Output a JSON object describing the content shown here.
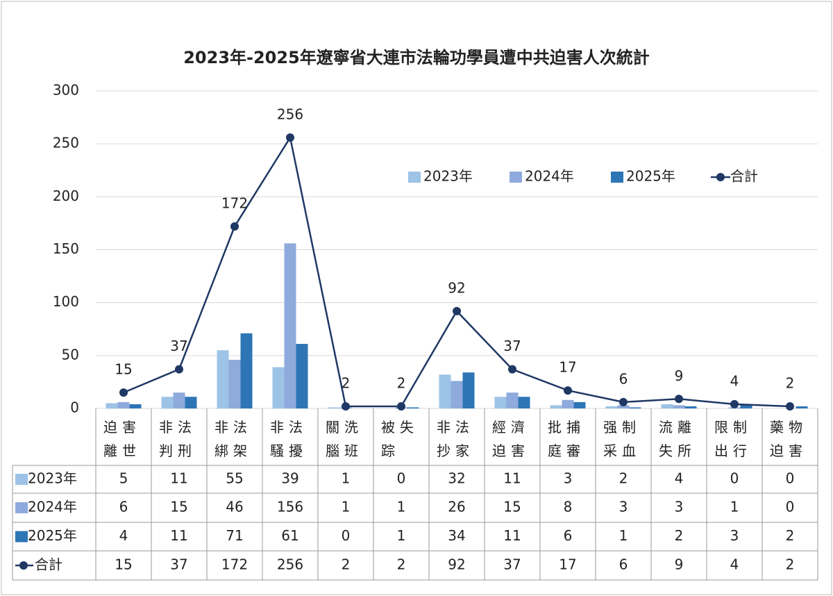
{
  "chart_data": {
    "type": "bar-line-table",
    "title": "2023年-2025年遼寧省大連市法輪功學員遭中共迫害人次統計",
    "categories": [
      "迫害離世",
      "非法判刑",
      "非法綁架",
      "非法騷擾",
      "關洗腦班",
      "被失踪",
      "非法抄家",
      "經濟迫害",
      "批捕庭審",
      "强制采血",
      "流離失所",
      "限制出行",
      "藥物迫害"
    ],
    "series": [
      {
        "name": "2023年",
        "type": "bar",
        "color": "#9dc3e6",
        "values": [
          5,
          11,
          55,
          39,
          1,
          0,
          32,
          11,
          3,
          2,
          4,
          0,
          0
        ]
      },
      {
        "name": "2024年",
        "type": "bar",
        "color": "#8faadc",
        "values": [
          6,
          15,
          46,
          156,
          1,
          1,
          26,
          15,
          8,
          3,
          3,
          1,
          0
        ]
      },
      {
        "name": "2025年",
        "type": "bar",
        "color": "#2e75b6",
        "values": [
          4,
          11,
          71,
          61,
          0,
          1,
          34,
          11,
          6,
          1,
          2,
          3,
          2
        ]
      },
      {
        "name": "合計",
        "type": "line",
        "color": "#1f3864",
        "values": [
          15,
          37,
          172,
          256,
          2,
          2,
          92,
          37,
          17,
          6,
          9,
          4,
          2
        ]
      }
    ],
    "ylim": [
      0,
      300
    ],
    "yticks": [
      0,
      50,
      100,
      150,
      200,
      250,
      300
    ],
    "grid": true
  }
}
